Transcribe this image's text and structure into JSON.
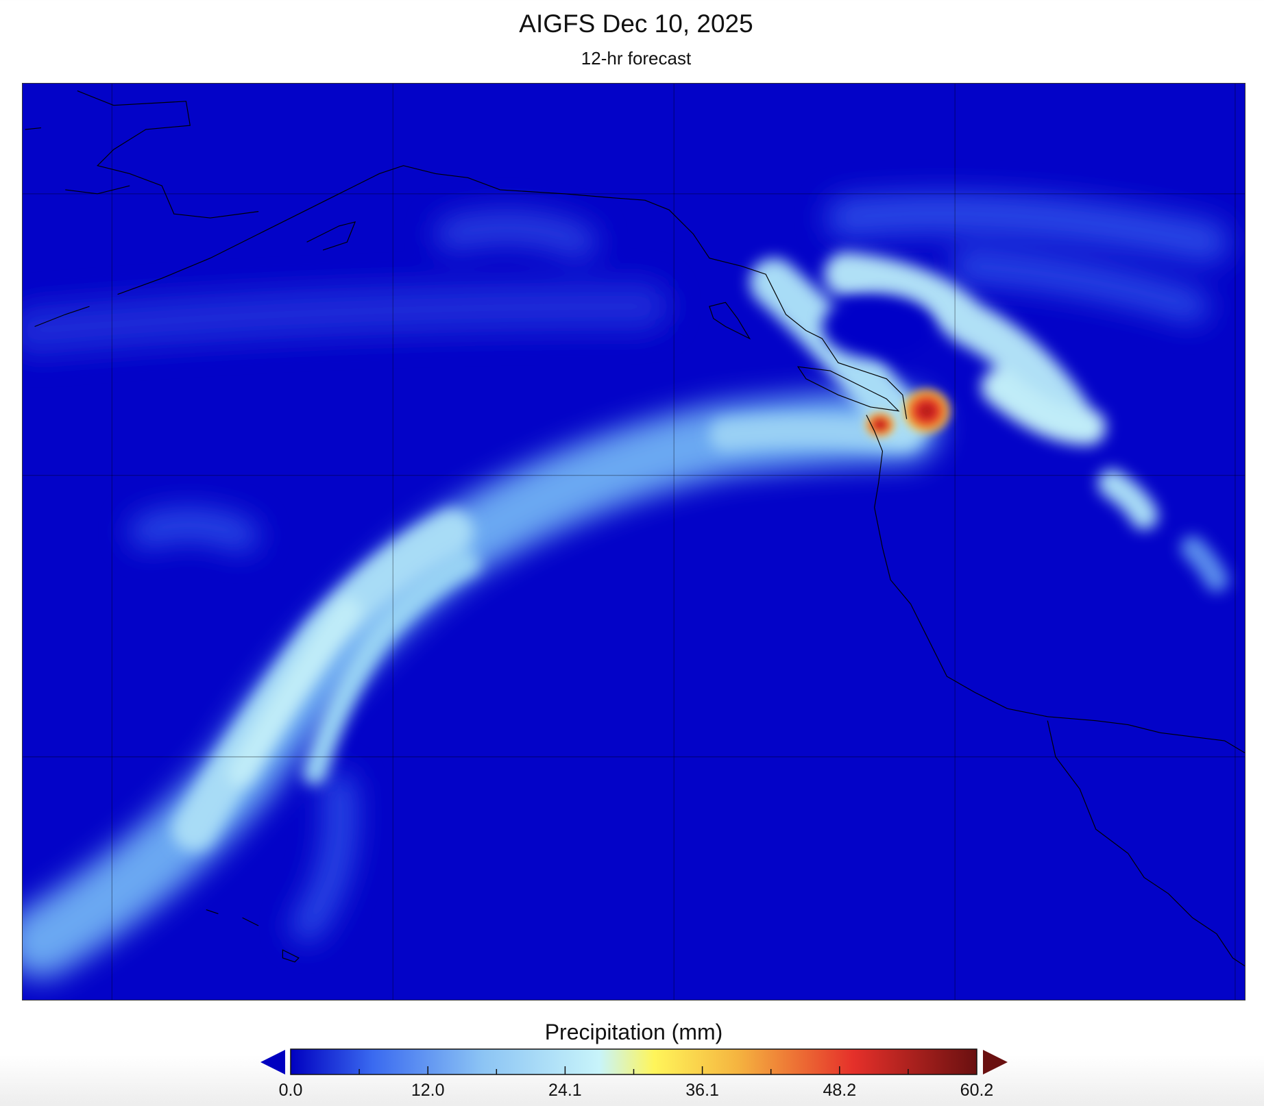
{
  "title": "AIGFS Dec 10, 2025",
  "subtitle": "12-hr forecast",
  "map": {
    "variable": "Precipitation",
    "background_color": "#0303c8",
    "coastline_color": "#000000",
    "gridlines": true
  },
  "colorbar": {
    "label": "Precipitation (mm)",
    "min": 0.0,
    "max": 60.2,
    "extend": "both",
    "colormap": [
      "#0000c0",
      "#3a6af0",
      "#8cc4f4",
      "#c8f4fa",
      "#fff55a",
      "#f5b540",
      "#e5302a",
      "#6a1010"
    ],
    "ticks": [
      "0.0",
      "12.0",
      "24.1",
      "36.1",
      "48.2",
      "60.2"
    ]
  }
}
